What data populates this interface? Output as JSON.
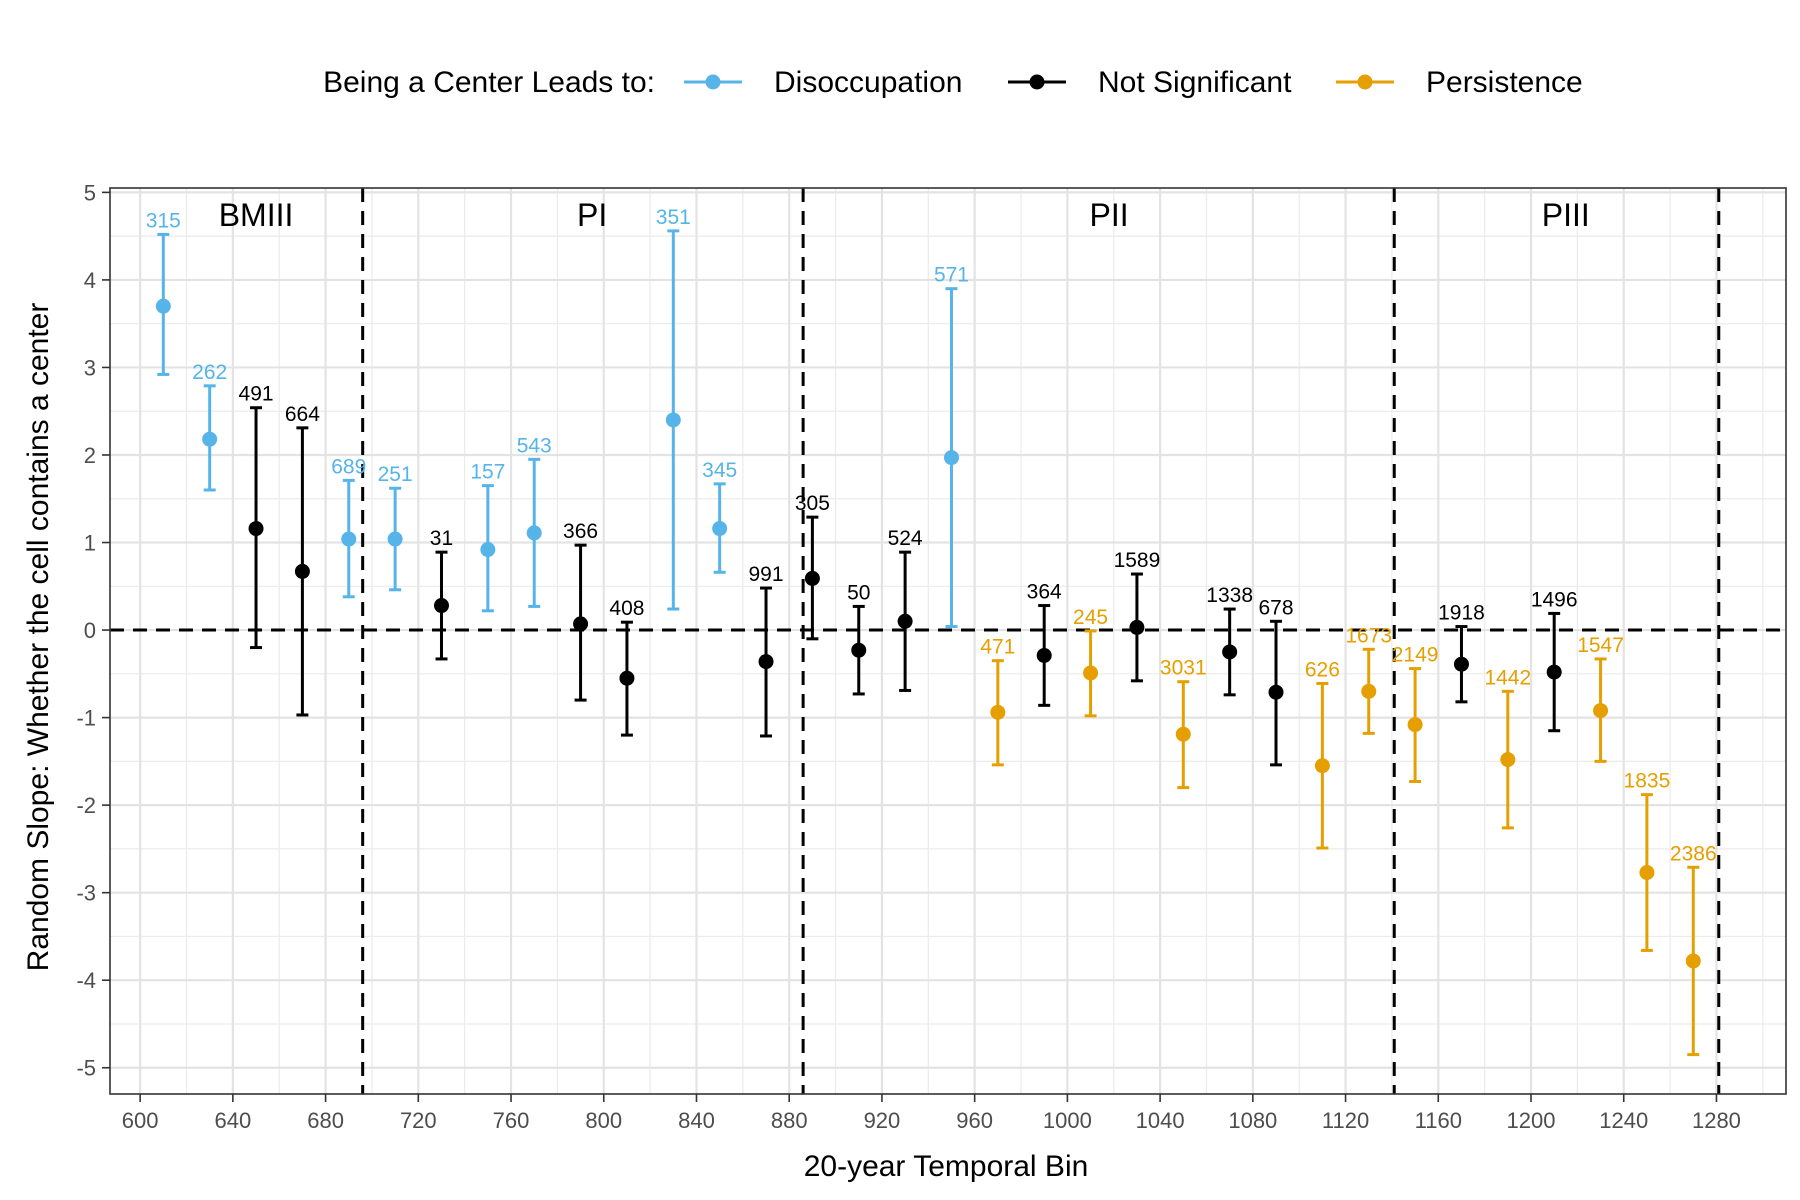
{
  "chart_data": {
    "type": "scatter",
    "subtype": "point-with-error-bars",
    "xlabel": "20-year Temporal Bin",
    "ylabel": "Random Slope: Whether the cell contains a center",
    "xlim": [
      587,
      1310
    ],
    "ylim": [
      -5.3,
      5.05
    ],
    "x_ticks": [
      600,
      640,
      680,
      720,
      760,
      800,
      840,
      880,
      920,
      960,
      1000,
      1040,
      1080,
      1120,
      1160,
      1200,
      1240,
      1280
    ],
    "y_ticks": [
      5,
      4,
      3,
      2,
      1,
      0,
      -1,
      -2,
      -3,
      -4,
      -5
    ],
    "grid": true,
    "legend": {
      "title": "Being a Center Leads to:",
      "placement": "top",
      "entries": [
        {
          "key": "disoccupation",
          "label": "Disoccupation",
          "color": "#56B4E9"
        },
        {
          "key": "not_significant",
          "label": "Not Significant",
          "color": "#000000"
        },
        {
          "key": "persistence",
          "label": "Persistence",
          "color": "#E69F00"
        }
      ]
    },
    "reference_line": {
      "y": 0,
      "style": "dashed"
    },
    "periods": [
      {
        "label": "BMIII",
        "label_x": 650
      },
      {
        "label": "PI",
        "label_x": 795
      },
      {
        "label": "PII",
        "label_x": 1018
      },
      {
        "label": "PIII",
        "label_x": 1215
      }
    ],
    "period_boundaries": [
      696,
      886,
      1141,
      1281
    ],
    "points": [
      {
        "x": 610,
        "y": 3.7,
        "lo": 2.92,
        "hi": 4.52,
        "n": "315",
        "group": "disoccupation"
      },
      {
        "x": 630,
        "y": 2.18,
        "lo": 1.6,
        "hi": 2.79,
        "n": "262",
        "group": "disoccupation"
      },
      {
        "x": 650,
        "y": 1.16,
        "lo": -0.2,
        "hi": 2.54,
        "n": "491",
        "group": "not_significant"
      },
      {
        "x": 670,
        "y": 0.67,
        "lo": -0.97,
        "hi": 2.31,
        "n": "664",
        "group": "not_significant"
      },
      {
        "x": 690,
        "y": 1.04,
        "lo": 0.38,
        "hi": 1.71,
        "n": "689",
        "group": "disoccupation"
      },
      {
        "x": 710,
        "y": 1.04,
        "lo": 0.46,
        "hi": 1.62,
        "n": "251",
        "group": "disoccupation"
      },
      {
        "x": 730,
        "y": 0.28,
        "lo": -0.33,
        "hi": 0.89,
        "n": "31",
        "group": "not_significant"
      },
      {
        "x": 750,
        "y": 0.92,
        "lo": 0.22,
        "hi": 1.65,
        "n": "157",
        "group": "disoccupation"
      },
      {
        "x": 770,
        "y": 1.11,
        "lo": 0.27,
        "hi": 1.95,
        "n": "543",
        "group": "disoccupation"
      },
      {
        "x": 790,
        "y": 0.07,
        "lo": -0.8,
        "hi": 0.97,
        "n": "366",
        "group": "not_significant"
      },
      {
        "x": 810,
        "y": -0.55,
        "lo": -1.2,
        "hi": 0.09,
        "n": "408",
        "group": "not_significant"
      },
      {
        "x": 830,
        "y": 2.4,
        "lo": 0.24,
        "hi": 4.56,
        "n": "351",
        "group": "disoccupation"
      },
      {
        "x": 850,
        "y": 1.16,
        "lo": 0.66,
        "hi": 1.67,
        "n": "345",
        "group": "disoccupation"
      },
      {
        "x": 870,
        "y": -0.36,
        "lo": -1.21,
        "hi": 0.48,
        "n": "991",
        "group": "not_significant"
      },
      {
        "x": 890,
        "y": 0.59,
        "lo": -0.1,
        "hi": 1.29,
        "n": "305",
        "group": "not_significant"
      },
      {
        "x": 910,
        "y": -0.23,
        "lo": -0.73,
        "hi": 0.27,
        "n": "50",
        "group": "not_significant"
      },
      {
        "x": 930,
        "y": 0.1,
        "lo": -0.69,
        "hi": 0.89,
        "n": "524",
        "group": "not_significant"
      },
      {
        "x": 950,
        "y": 1.97,
        "lo": 0.04,
        "hi": 3.9,
        "n": "571",
        "group": "disoccupation"
      },
      {
        "x": 970,
        "y": -0.94,
        "lo": -1.54,
        "hi": -0.35,
        "n": "471",
        "group": "persistence"
      },
      {
        "x": 990,
        "y": -0.29,
        "lo": -0.86,
        "hi": 0.28,
        "n": "364",
        "group": "not_significant"
      },
      {
        "x": 1010,
        "y": -0.49,
        "lo": -0.98,
        "hi": -0.01,
        "n": "245",
        "group": "persistence"
      },
      {
        "x": 1030,
        "y": 0.03,
        "lo": -0.58,
        "hi": 0.64,
        "n": "1589",
        "group": "not_significant"
      },
      {
        "x": 1050,
        "y": -1.19,
        "lo": -1.8,
        "hi": -0.59,
        "n": "3031",
        "group": "persistence"
      },
      {
        "x": 1070,
        "y": -0.25,
        "lo": -0.74,
        "hi": 0.24,
        "n": "1338",
        "group": "not_significant"
      },
      {
        "x": 1090,
        "y": -0.71,
        "lo": -1.54,
        "hi": 0.1,
        "n": "678",
        "group": "not_significant"
      },
      {
        "x": 1110,
        "y": -1.55,
        "lo": -2.49,
        "hi": -0.61,
        "n": "626",
        "group": "persistence"
      },
      {
        "x": 1130,
        "y": -0.7,
        "lo": -1.18,
        "hi": -0.22,
        "n": "1673",
        "group": "persistence"
      },
      {
        "x": 1150,
        "y": -1.08,
        "lo": -1.73,
        "hi": -0.44,
        "n": "2149",
        "group": "persistence"
      },
      {
        "x": 1170,
        "y": -0.39,
        "lo": -0.82,
        "hi": 0.04,
        "n": "1918",
        "group": "not_significant"
      },
      {
        "x": 1190,
        "y": -1.48,
        "lo": -2.26,
        "hi": -0.7,
        "n": "1442",
        "group": "persistence"
      },
      {
        "x": 1210,
        "y": -0.48,
        "lo": -1.15,
        "hi": 0.19,
        "n": "1496",
        "group": "not_significant"
      },
      {
        "x": 1230,
        "y": -0.92,
        "lo": -1.5,
        "hi": -0.33,
        "n": "1547",
        "group": "persistence"
      },
      {
        "x": 1250,
        "y": -2.77,
        "lo": -3.66,
        "hi": -1.88,
        "n": "1835",
        "group": "persistence"
      },
      {
        "x": 1270,
        "y": -3.78,
        "lo": -4.85,
        "hi": -2.71,
        "n": "2386",
        "group": "persistence"
      }
    ]
  }
}
